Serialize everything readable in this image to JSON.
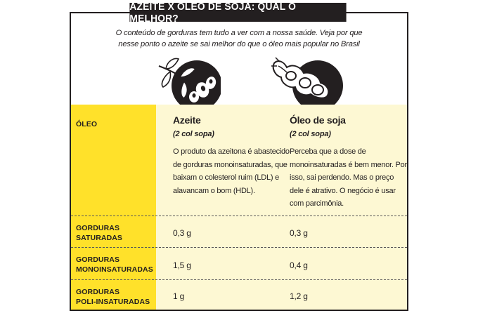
{
  "title": "AZEITE X ÓLEO DE SOJA: QUAL O MELHOR?",
  "subtitle_line1": "O conteúdo de gorduras tem tudo a ver com a nossa saúde. Veja por que",
  "subtitle_line2": "nesse ponto o azeite se sai melhor do que o óleo mais popular no Brasil",
  "icons": {
    "left": "olive-branch-icon",
    "right": "soybean-pod-icon"
  },
  "table": {
    "row_label_header": "ÓLEO",
    "columns": [
      {
        "name": "Azeite",
        "serving": "(2 col sopa)",
        "description": "O produto da azeitona é abastecido de gorduras monoinsaturadas, que baixam o colesterol ruim (LDL) e alavancam o bom (HDL)."
      },
      {
        "name": "Óleo de soja",
        "serving": "(2 col sopa)",
        "description": "Perceba que a dose de monoinsaturadas é bem menor. Por isso, sai perdendo. Mas o preço dele é atrativo. O negócio é usar com parcimônia."
      }
    ],
    "rows": [
      {
        "label_line1": "GORDURAS",
        "label_line2": "SATURADAS",
        "values": [
          "0,3 g",
          "0,3 g"
        ]
      },
      {
        "label_line1": "GORDURAS",
        "label_line2": "MONOINSATURADAS",
        "values": [
          "1,5 g",
          "0,4 g"
        ]
      },
      {
        "label_line1": "GORDURAS",
        "label_line2": "POLI-INSATURADAS",
        "values": [
          "1 g",
          "1,2 g"
        ]
      }
    ]
  },
  "colors": {
    "ink": "#231f20",
    "highlight_yellow": "#ffe12a",
    "cream": "#fdf8d3"
  }
}
